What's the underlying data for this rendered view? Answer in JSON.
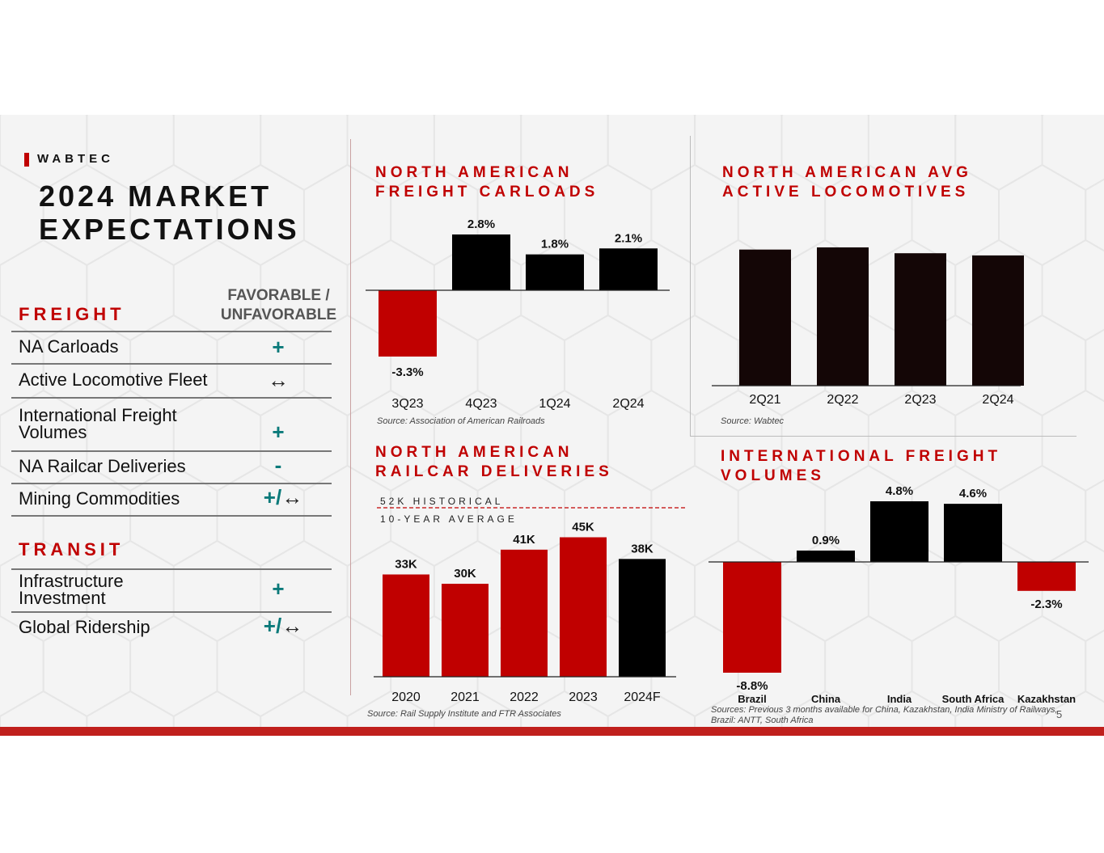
{
  "brand": "WABTEC",
  "page_title": "2024 MARKET EXPECTATIONS",
  "freight": {
    "heading": "FREIGHT",
    "fav_header": "FAVORABLE / UNFAVORABLE",
    "rows": [
      {
        "label": "NA Carloads",
        "symbol": "+",
        "arrow": ""
      },
      {
        "label": "Active Locomotive Fleet",
        "symbol": "",
        "arrow": "↔"
      },
      {
        "label": "International Freight Volumes",
        "symbol": "+",
        "arrow": ""
      },
      {
        "label": "NA Railcar Deliveries",
        "symbol": "-",
        "arrow": ""
      },
      {
        "label": "Mining Commodities",
        "symbol": "+/",
        "arrow": "↔"
      }
    ]
  },
  "transit": {
    "heading": "TRANSIT",
    "rows": [
      {
        "label": "Infrastructure Investment",
        "symbol": "+",
        "arrow": ""
      },
      {
        "label": "Global Ridership",
        "symbol": "+/",
        "arrow": "↔"
      }
    ]
  },
  "colors": {
    "red": "#c00000",
    "black": "#000000",
    "dark_bar": "#140606",
    "teal": "#0b7a7a"
  },
  "page_number": "5",
  "chart_data": [
    {
      "id": "carloads",
      "type": "bar",
      "title": "NORTH AMERICAN FREIGHT CARLOADS",
      "categories": [
        "3Q23",
        "4Q23",
        "1Q24",
        "2Q24"
      ],
      "values": [
        -3.3,
        2.8,
        1.8,
        2.1
      ],
      "labels": [
        "-3.3%",
        "2.8%",
        "1.8%",
        "2.1%"
      ],
      "colors": [
        "#c00000",
        "#000000",
        "#000000",
        "#000000"
      ],
      "ylim": [
        -3.3,
        2.8
      ],
      "source": "Source: Association of American Railroads"
    },
    {
      "id": "locomotives",
      "type": "bar",
      "title": "NORTH AMERICAN AVG ACTIVE LOCOMOTIVES",
      "categories": [
        "2Q21",
        "2Q22",
        "2Q23",
        "2Q24"
      ],
      "values": [
        0.93,
        0.945,
        0.905,
        0.89
      ],
      "labels": [],
      "colors": [
        "#140606",
        "#140606",
        "#140606",
        "#140606"
      ],
      "ylim": [
        0,
        1
      ],
      "source": "Source: Wabtec"
    },
    {
      "id": "railcars",
      "type": "bar",
      "title": "NORTH AMERICAN RAILCAR DELIVERIES",
      "categories": [
        "2020",
        "2021",
        "2022",
        "2023",
        "2024F"
      ],
      "values": [
        33,
        30,
        41,
        45,
        38
      ],
      "labels": [
        "33K",
        "30K",
        "41K",
        "45K",
        "38K"
      ],
      "colors": [
        "#c00000",
        "#c00000",
        "#c00000",
        "#c00000",
        "#000000"
      ],
      "reference_line": {
        "value": 52,
        "label_1": "52K HISTORICAL",
        "label_2": "10-YEAR AVERAGE"
      },
      "ylim": [
        0,
        48
      ],
      "source": "Source: Rail Supply Institute and FTR Associates"
    },
    {
      "id": "international",
      "type": "bar",
      "title": "INTERNATIONAL FREIGHT VOLUMES",
      "categories": [
        "Brazil",
        "China",
        "India",
        "South Africa",
        "Kazakhstan"
      ],
      "values": [
        -8.8,
        0.9,
        4.8,
        4.6,
        -2.3
      ],
      "labels": [
        "-8.8%",
        "0.9%",
        "4.8%",
        "4.6%",
        "-2.3%"
      ],
      "colors": [
        "#c00000",
        "#000000",
        "#000000",
        "#000000",
        "#c00000"
      ],
      "ylim": [
        -8.8,
        4.8
      ],
      "source": "Sources: Previous 3 months available for China, Kazakhstan, India Ministry of Railways, Brazil: ANTT, South Africa"
    }
  ]
}
